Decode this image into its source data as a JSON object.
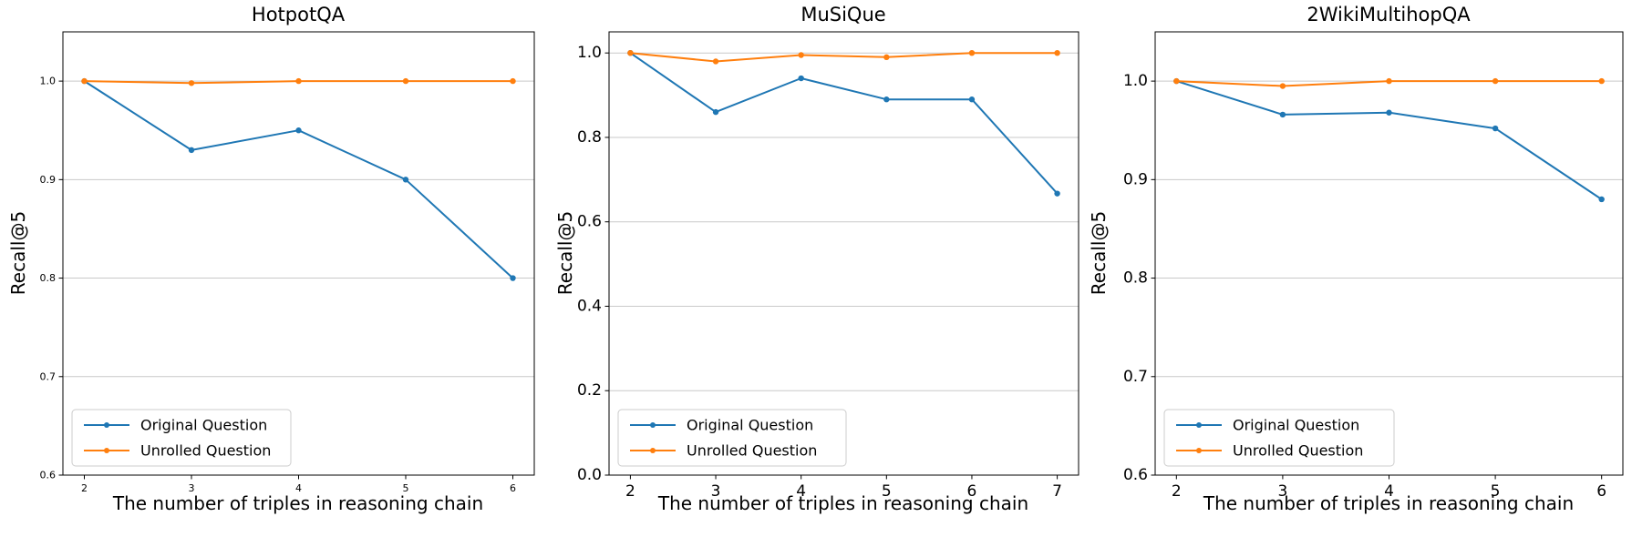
{
  "figure_title": "",
  "chart_data": [
    {
      "type": "line",
      "title": "HotpotQA",
      "xlabel": "The number of triples in reasoning chain",
      "ylabel": "Recall@5",
      "x": [
        2,
        3,
        4,
        5,
        6
      ],
      "xtick_labels": [
        "2",
        "3",
        "4",
        "5",
        "6"
      ],
      "xlim": [
        1.8,
        6.2
      ],
      "ylim": [
        0.6,
        1.05
      ],
      "ytick_values": [
        1.0,
        0.9,
        0.8,
        0.7,
        0.6
      ],
      "ytick_labels": [
        "1.0",
        "0.9",
        "0.8",
        "0.7",
        "0.6"
      ],
      "grid": "horizontal",
      "legend_position": "lower left",
      "series": [
        {
          "name": "Original Question",
          "color": "#1f77b4",
          "values": [
            1.0,
            0.93,
            0.95,
            0.9,
            0.8
          ]
        },
        {
          "name": "Unrolled Question",
          "color": "#ff7f0e",
          "values": [
            1.0,
            0.998,
            1.0,
            1.0,
            1.0
          ]
        }
      ]
    },
    {
      "type": "line",
      "title": "MuSiQue",
      "xlabel": "The number of triples in reasoning chain",
      "ylabel": "Recall@5",
      "x": [
        2,
        3,
        4,
        5,
        6,
        7
      ],
      "xtick_labels": [
        "2",
        "3",
        "4",
        "5",
        "6",
        "7"
      ],
      "xlim": [
        1.75,
        7.25
      ],
      "ylim": [
        0.0,
        1.05
      ],
      "ytick_values": [
        1.0,
        0.8,
        0.6,
        0.4,
        0.2,
        0.0
      ],
      "ytick_labels": [
        "1.0",
        "0.8",
        "0.6",
        "0.4",
        "0.2",
        "0.0"
      ],
      "grid": "horizontal",
      "legend_position": "lower left",
      "series": [
        {
          "name": "Original Question",
          "color": "#1f77b4",
          "values": [
            1.0,
            0.86,
            0.94,
            0.89,
            0.89,
            0.667
          ]
        },
        {
          "name": "Unrolled Question",
          "color": "#ff7f0e",
          "values": [
            1.0,
            0.98,
            0.995,
            0.99,
            1.0,
            1.0
          ]
        }
      ]
    },
    {
      "type": "line",
      "title": "2WikiMultihopQA",
      "xlabel": "The number of triples in reasoning chain",
      "ylabel": "Recall@5",
      "x": [
        2,
        3,
        4,
        5,
        6
      ],
      "xtick_labels": [
        "2",
        "3",
        "4",
        "5",
        "6"
      ],
      "xlim": [
        1.8,
        6.2
      ],
      "ylim": [
        0.6,
        1.05
      ],
      "ytick_values": [
        1.0,
        0.9,
        0.8,
        0.7,
        0.6
      ],
      "ytick_labels": [
        "1.0",
        "0.9",
        "0.8",
        "0.7",
        "0.6"
      ],
      "grid": "horizontal",
      "legend_position": "lower left",
      "series": [
        {
          "name": "Original Question",
          "color": "#1f77b4",
          "values": [
            1.0,
            0.966,
            0.968,
            0.952,
            0.88
          ]
        },
        {
          "name": "Unrolled Question",
          "color": "#ff7f0e",
          "values": [
            1.0,
            0.995,
            1.0,
            1.0,
            1.0
          ]
        }
      ]
    }
  ],
  "colors": {
    "original_question": "#1f77b4",
    "unrolled_question": "#ff7f0e",
    "gridline": "#c9c9c9",
    "spine": "#000000",
    "legend_border": "#cccccc"
  }
}
